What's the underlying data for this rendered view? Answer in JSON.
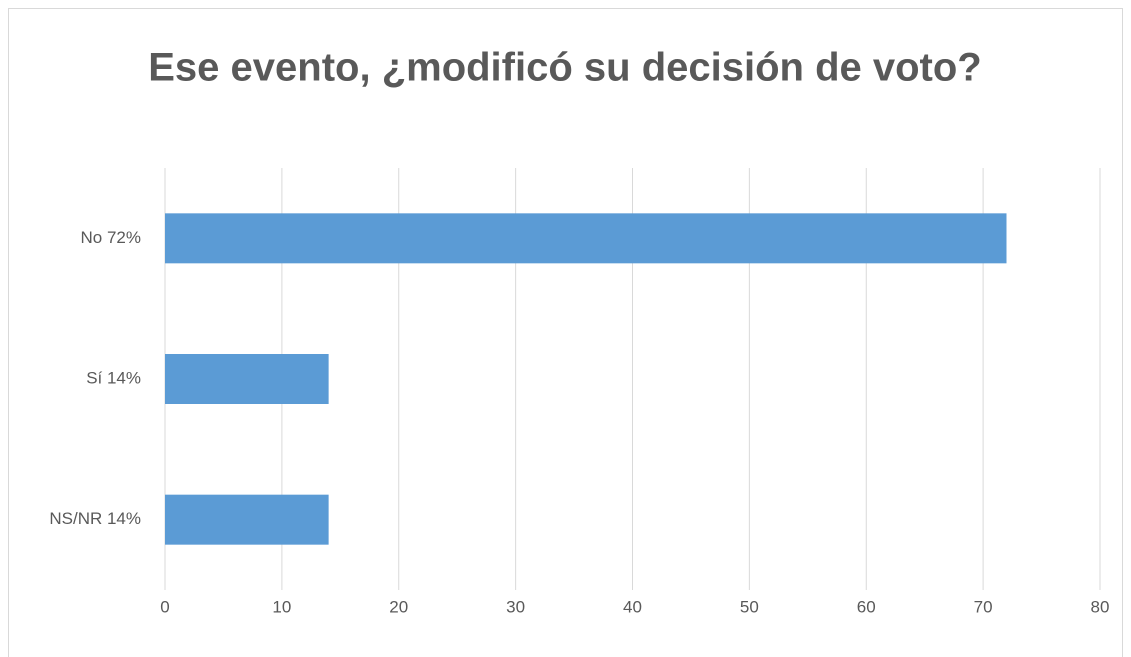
{
  "chart_data": {
    "type": "bar",
    "orientation": "horizontal",
    "title": "Ese evento, ¿modificó su decisión de voto?",
    "categories": [
      "No 72%",
      "Sí 14%",
      "NS/NR 14%"
    ],
    "values": [
      72,
      14,
      14
    ],
    "color": "#5b9bd5",
    "xlim": [
      0,
      80
    ],
    "xticks": [
      0,
      10,
      20,
      30,
      40,
      50,
      60,
      70,
      80
    ],
    "grid": true
  }
}
